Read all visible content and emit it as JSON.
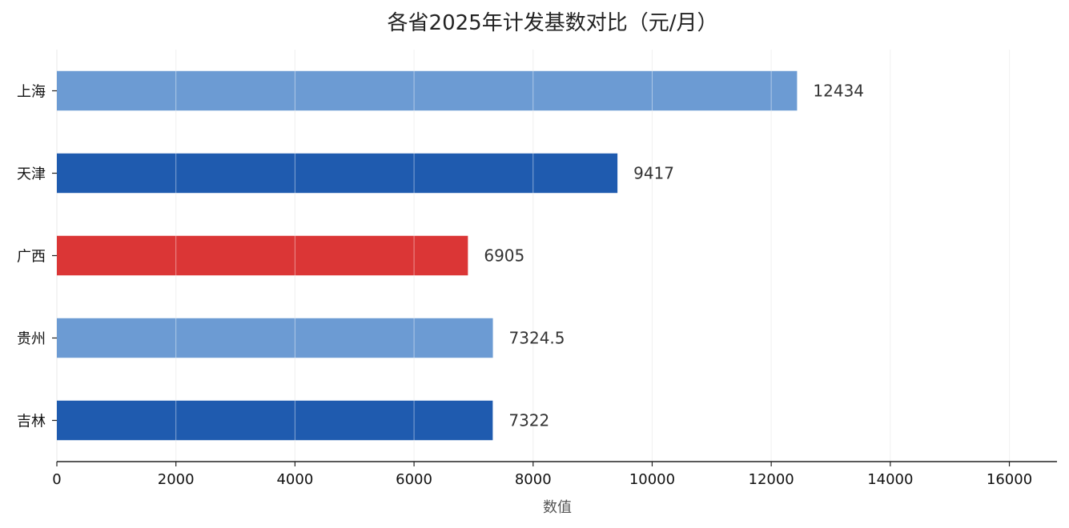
{
  "chart_data": {
    "type": "bar",
    "orientation": "horizontal",
    "title": "各省2025年计发基数对比（元/月）",
    "xlabel": "数值",
    "ylabel": "",
    "categories": [
      "上海",
      "天津",
      "广西",
      "贵州",
      "吉林"
    ],
    "values": [
      12434,
      9417,
      6905,
      7324.5,
      7322
    ],
    "value_labels": [
      "12434",
      "9417",
      "6905",
      "7324.5",
      "7322"
    ],
    "bar_colors": [
      "#6c9bd3",
      "#1f5baf",
      "#db3636",
      "#6c9bd3",
      "#1f5baf"
    ],
    "xlim": [
      0,
      16800
    ],
    "xticks": [
      0,
      2000,
      4000,
      6000,
      8000,
      10000,
      12000,
      14000,
      16000
    ],
    "xtick_labels": [
      "0",
      "2000",
      "4000",
      "6000",
      "8000",
      "10000",
      "12000",
      "14000",
      "16000"
    ],
    "grid": "vertical"
  }
}
